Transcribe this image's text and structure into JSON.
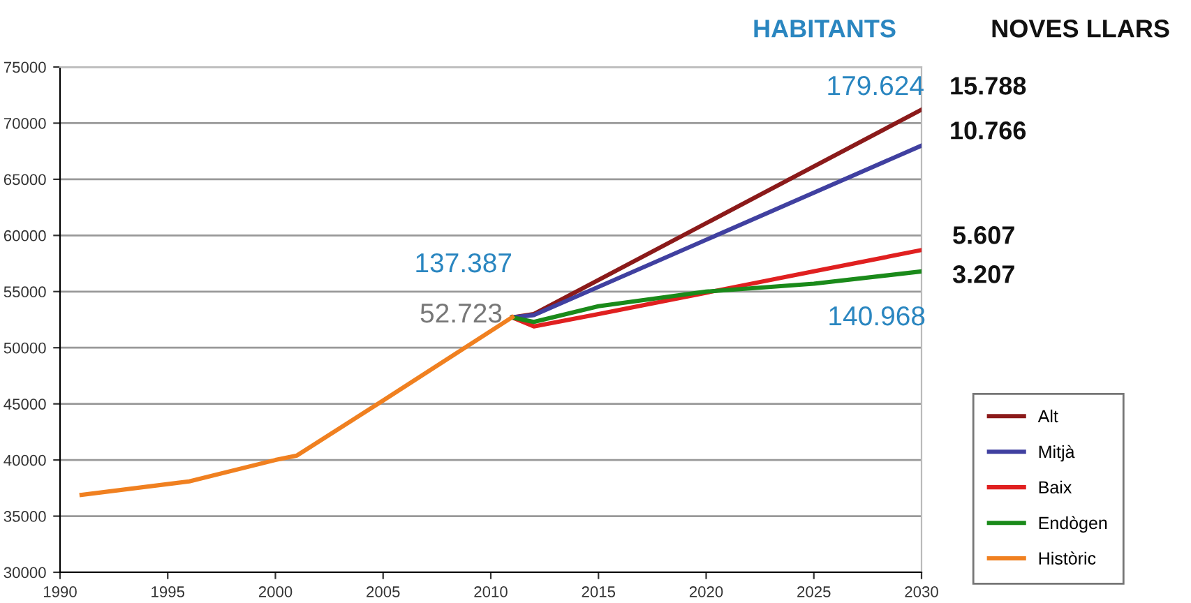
{
  "chart_data": {
    "type": "line",
    "xlim": [
      1990,
      2030
    ],
    "xticks": [
      1990,
      1995,
      2000,
      2005,
      2010,
      2015,
      2020,
      2025,
      2030
    ],
    "ylim": [
      30000,
      75000
    ],
    "yticks": [
      30000,
      35000,
      40000,
      45000,
      50000,
      55000,
      60000,
      65000,
      70000,
      75000
    ],
    "grid": "y",
    "legend": "bottom right",
    "marker": "none",
    "line_style": "solid",
    "series": [
      {
        "name": "Alt",
        "color": "#8b1a1a",
        "x": [
          2011,
          2012,
          2030
        ],
        "values": [
          52700,
          53000,
          71200
        ]
      },
      {
        "name": "Mitjà",
        "color": "#4040a0",
        "x": [
          2011,
          2012,
          2030
        ],
        "values": [
          52700,
          52900,
          68000
        ]
      },
      {
        "name": "Baix",
        "color": "#e02020",
        "x": [
          2011,
          2012,
          2015,
          2020,
          2025,
          2030
        ],
        "values": [
          52700,
          51900,
          53000,
          54900,
          56800,
          58700
        ]
      },
      {
        "name": "Endògen",
        "color": "#1a8a1a",
        "x": [
          2011,
          2012,
          2015,
          2020,
          2025,
          2030
        ],
        "values": [
          52700,
          52300,
          53700,
          55000,
          55700,
          56800
        ]
      },
      {
        "name": "Històric",
        "color": "#f08020",
        "x": [
          1991,
          1996,
          2000,
          2001,
          2005,
          2011
        ],
        "values": [
          36900,
          38100,
          40000,
          40400,
          45300,
          52723
        ]
      }
    ],
    "annotations": [
      "HABITANTS",
      "NOVES LLARS",
      "179.624",
      "15.788",
      "10.766",
      "5.607",
      "3.207",
      "137.387",
      "52.723",
      "140.968"
    ]
  }
}
